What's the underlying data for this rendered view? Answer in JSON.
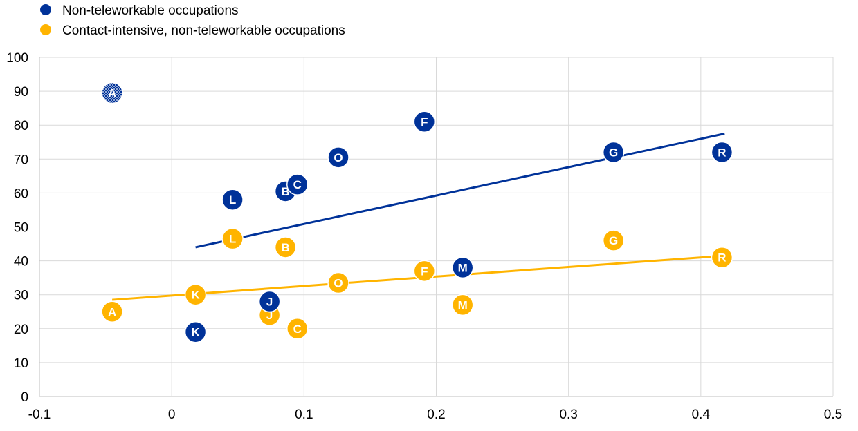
{
  "chart_data": {
    "type": "scatter",
    "title": "",
    "xlabel": "",
    "ylabel": "",
    "xlim": [
      -0.1,
      0.5
    ],
    "ylim": [
      0,
      100
    ],
    "x_ticks": [
      "-0.1",
      "0",
      "0.1",
      "0.2",
      "0.3",
      "0.4",
      "0.5"
    ],
    "y_ticks": [
      "0",
      "10",
      "20",
      "30",
      "40",
      "50",
      "60",
      "70",
      "80",
      "90",
      "100"
    ],
    "grid": true,
    "legend_position": "top-left",
    "series": [
      {
        "name": "Non-teleworkable occupations",
        "color": "#003299",
        "trendline": {
          "x": [
            0.018,
            0.418
          ],
          "y": [
            44.0,
            77.5
          ]
        },
        "points": [
          {
            "label": "A",
            "x": -0.045,
            "y": 89.5,
            "pattern": "dotted"
          },
          {
            "label": "B",
            "x": 0.086,
            "y": 60.5
          },
          {
            "label": "C",
            "x": 0.095,
            "y": 62.5
          },
          {
            "label": "F",
            "x": 0.191,
            "y": 81.0
          },
          {
            "label": "G",
            "x": 0.334,
            "y": 72.0
          },
          {
            "label": "J",
            "x": 0.074,
            "y": 28.0
          },
          {
            "label": "K",
            "x": 0.018,
            "y": 19.0
          },
          {
            "label": "L",
            "x": 0.046,
            "y": 58.0
          },
          {
            "label": "M",
            "x": 0.22,
            "y": 38.0
          },
          {
            "label": "O",
            "x": 0.126,
            "y": 70.5
          },
          {
            "label": "R",
            "x": 0.416,
            "y": 72.0
          }
        ]
      },
      {
        "name": "Contact-intensive, non-teleworkable occupations",
        "color": "#FFB400",
        "trendline": {
          "x": [
            -0.045,
            0.418
          ],
          "y": [
            28.5,
            41.5
          ]
        },
        "points": [
          {
            "label": "A",
            "x": -0.045,
            "y": 25.0
          },
          {
            "label": "B",
            "x": 0.086,
            "y": 44.0
          },
          {
            "label": "C",
            "x": 0.095,
            "y": 20.0
          },
          {
            "label": "F",
            "x": 0.191,
            "y": 37.0
          },
          {
            "label": "G",
            "x": 0.334,
            "y": 46.0
          },
          {
            "label": "J",
            "x": 0.074,
            "y": 24.0
          },
          {
            "label": "K",
            "x": 0.018,
            "y": 30.0
          },
          {
            "label": "L",
            "x": 0.046,
            "y": 46.5
          },
          {
            "label": "M",
            "x": 0.22,
            "y": 27.0
          },
          {
            "label": "O",
            "x": 0.126,
            "y": 33.5
          },
          {
            "label": "R",
            "x": 0.416,
            "y": 41.0
          }
        ]
      }
    ]
  }
}
